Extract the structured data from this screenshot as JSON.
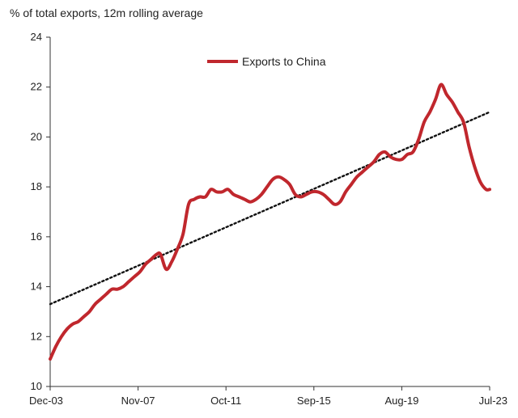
{
  "chart_data": {
    "type": "line",
    "title": "",
    "ylabel": "% of total exports, 12m rolling average",
    "xlabel": "",
    "x_start": "Dec-03",
    "x_end": "Jul-23",
    "ylim": [
      10,
      24
    ],
    "yticks": [
      10,
      12,
      14,
      16,
      18,
      20,
      22,
      24
    ],
    "xticks": [
      "Dec-03",
      "Nov-07",
      "Oct-11",
      "Sep-15",
      "Aug-19",
      "Jul-23"
    ],
    "legend_position": "top-center",
    "grid": false,
    "colors": {
      "series": "#c0272d",
      "trend": "#111111",
      "axis": "#333333"
    },
    "series": [
      {
        "name": "Exports to China",
        "style": "solid",
        "points": [
          [
            "Dec-03",
            11.1
          ],
          [
            "Mar-04",
            11.6
          ],
          [
            "Jun-04",
            12.0
          ],
          [
            "Sep-04",
            12.3
          ],
          [
            "Dec-04",
            12.5
          ],
          [
            "Mar-05",
            12.6
          ],
          [
            "Jun-05",
            12.8
          ],
          [
            "Sep-05",
            13.0
          ],
          [
            "Dec-05",
            13.3
          ],
          [
            "Mar-06",
            13.5
          ],
          [
            "Jun-06",
            13.7
          ],
          [
            "Sep-06",
            13.9
          ],
          [
            "Dec-06",
            13.9
          ],
          [
            "Mar-07",
            14.0
          ],
          [
            "Jun-07",
            14.2
          ],
          [
            "Sep-07",
            14.4
          ],
          [
            "Dec-07",
            14.6
          ],
          [
            "Mar-08",
            14.9
          ],
          [
            "Jun-08",
            15.1
          ],
          [
            "Sep-08",
            15.3
          ],
          [
            "Nov-08",
            15.3
          ],
          [
            "Feb-09",
            14.7
          ],
          [
            "May-09",
            15.0
          ],
          [
            "Aug-09",
            15.5
          ],
          [
            "Nov-09",
            16.1
          ],
          [
            "Feb-10",
            17.3
          ],
          [
            "May-10",
            17.5
          ],
          [
            "Aug-10",
            17.6
          ],
          [
            "Nov-10",
            17.6
          ],
          [
            "Feb-11",
            17.9
          ],
          [
            "May-11",
            17.8
          ],
          [
            "Aug-11",
            17.8
          ],
          [
            "Nov-11",
            17.9
          ],
          [
            "Feb-12",
            17.7
          ],
          [
            "May-12",
            17.6
          ],
          [
            "Aug-12",
            17.5
          ],
          [
            "Nov-12",
            17.4
          ],
          [
            "Feb-13",
            17.5
          ],
          [
            "May-13",
            17.7
          ],
          [
            "Aug-13",
            18.0
          ],
          [
            "Nov-13",
            18.3
          ],
          [
            "Feb-14",
            18.4
          ],
          [
            "May-14",
            18.3
          ],
          [
            "Aug-14",
            18.1
          ],
          [
            "Nov-14",
            17.7
          ],
          [
            "Feb-15",
            17.6
          ],
          [
            "May-15",
            17.7
          ],
          [
            "Aug-15",
            17.8
          ],
          [
            "Nov-15",
            17.8
          ],
          [
            "Feb-16",
            17.7
          ],
          [
            "May-16",
            17.5
          ],
          [
            "Aug-16",
            17.3
          ],
          [
            "Nov-16",
            17.4
          ],
          [
            "Feb-17",
            17.8
          ],
          [
            "May-17",
            18.1
          ],
          [
            "Aug-17",
            18.4
          ],
          [
            "Nov-17",
            18.6
          ],
          [
            "Feb-18",
            18.8
          ],
          [
            "May-18",
            19.0
          ],
          [
            "Aug-18",
            19.3
          ],
          [
            "Nov-18",
            19.4
          ],
          [
            "Feb-19",
            19.2
          ],
          [
            "May-19",
            19.1
          ],
          [
            "Aug-19",
            19.1
          ],
          [
            "Nov-19",
            19.3
          ],
          [
            "Feb-20",
            19.4
          ],
          [
            "May-20",
            19.9
          ],
          [
            "Aug-20",
            20.6
          ],
          [
            "Nov-20",
            21.0
          ],
          [
            "Feb-21",
            21.5
          ],
          [
            "May-21",
            22.1
          ],
          [
            "Aug-21",
            21.7
          ],
          [
            "Nov-21",
            21.4
          ],
          [
            "Feb-22",
            21.0
          ],
          [
            "May-22",
            20.6
          ],
          [
            "Aug-22",
            19.6
          ],
          [
            "Nov-22",
            18.8
          ],
          [
            "Feb-23",
            18.2
          ],
          [
            "May-23",
            17.9
          ],
          [
            "Jul-23",
            17.9
          ]
        ]
      },
      {
        "style": "dotted",
        "points": [
          [
            "Dec-03",
            13.3
          ],
          [
            "Jul-23",
            21.0
          ]
        ]
      }
    ]
  }
}
